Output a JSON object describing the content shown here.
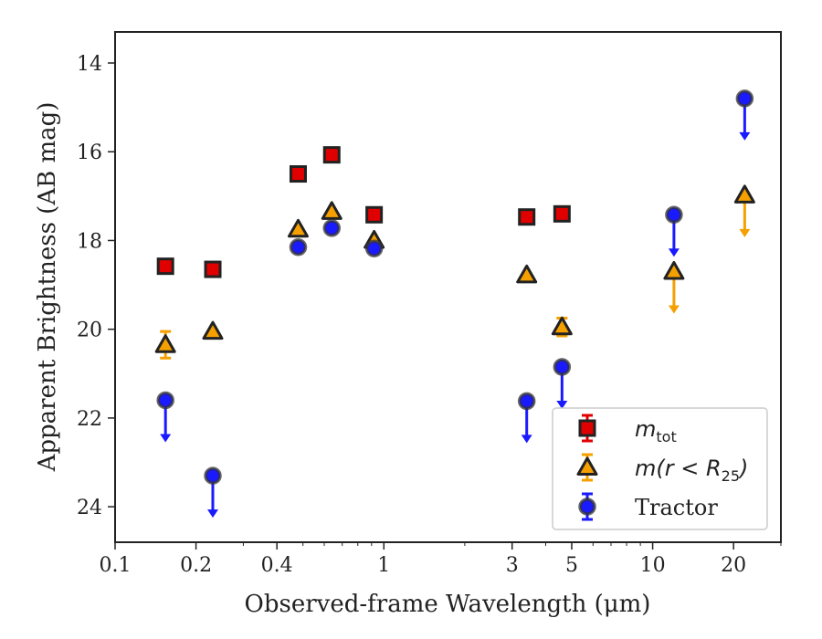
{
  "chart_data": {
    "type": "scatter",
    "xlabel": "Observed-frame Wavelength (μm)",
    "ylabel": "Apparent Brightness (AB mag)",
    "x_scale": "log",
    "xlim": [
      0.1,
      30
    ],
    "ylim": [
      24.8,
      13.3
    ],
    "y_inverted": true,
    "x_ticks": [
      {
        "value": 0.1,
        "label": "0.1"
      },
      {
        "value": 0.2,
        "label": "0.2"
      },
      {
        "value": 0.4,
        "label": "0.4"
      },
      {
        "value": 1,
        "label": "1"
      },
      {
        "value": 3,
        "label": "3"
      },
      {
        "value": 5,
        "label": "5"
      },
      {
        "value": 10,
        "label": "10"
      },
      {
        "value": 20,
        "label": "20"
      }
    ],
    "y_ticks": [
      {
        "value": 14,
        "label": "14"
      },
      {
        "value": 16,
        "label": "16"
      },
      {
        "value": 18,
        "label": "18"
      },
      {
        "value": 20,
        "label": "20"
      },
      {
        "value": 22,
        "label": "22"
      },
      {
        "value": 24,
        "label": "24"
      }
    ],
    "grid": false,
    "legend_position": "lower-right",
    "series": [
      {
        "name": "m_tot",
        "legend_label": {
          "main": "m",
          "sub": "tot"
        },
        "marker": "square",
        "color": "#e00000",
        "points": [
          {
            "x": 0.154,
            "y": 18.58
          },
          {
            "x": 0.231,
            "y": 18.65
          },
          {
            "x": 0.48,
            "y": 16.5
          },
          {
            "x": 0.64,
            "y": 16.07
          },
          {
            "x": 0.92,
            "y": 17.42
          },
          {
            "x": 3.4,
            "y": 17.47
          },
          {
            "x": 4.6,
            "y": 17.4
          }
        ]
      },
      {
        "name": "m(r<R25)",
        "legend_label": {
          "main": "m(r < R",
          "sub": "25",
          "tail": ")"
        },
        "marker": "triangle",
        "color": "#f5a000",
        "points": [
          {
            "x": 0.154,
            "y": 20.35,
            "yerr": 0.3
          },
          {
            "x": 0.231,
            "y": 20.05
          },
          {
            "x": 0.48,
            "y": 17.75
          },
          {
            "x": 0.64,
            "y": 17.35
          },
          {
            "x": 0.92,
            "y": 18.0
          },
          {
            "x": 3.4,
            "y": 18.78
          },
          {
            "x": 4.6,
            "y": 19.95,
            "yerr": 0.2
          },
          {
            "x": 12.0,
            "y": 18.7,
            "upper_limit": true
          },
          {
            "x": 22.0,
            "y": 16.98,
            "upper_limit": true
          }
        ]
      },
      {
        "name": "Tractor",
        "legend_label": {
          "main": "Tractor"
        },
        "marker": "circle",
        "color": "#1a1aff",
        "points": [
          {
            "x": 0.154,
            "y": 21.6,
            "upper_limit": true
          },
          {
            "x": 0.231,
            "y": 23.3,
            "upper_limit": true
          },
          {
            "x": 0.48,
            "y": 18.15
          },
          {
            "x": 0.64,
            "y": 17.72
          },
          {
            "x": 0.92,
            "y": 18.18
          },
          {
            "x": 3.4,
            "y": 21.62,
            "upper_limit": true
          },
          {
            "x": 4.6,
            "y": 20.85,
            "upper_limit": true
          },
          {
            "x": 12.0,
            "y": 17.42,
            "upper_limit": true
          },
          {
            "x": 22.0,
            "y": 14.8,
            "upper_limit": true
          }
        ]
      }
    ]
  }
}
